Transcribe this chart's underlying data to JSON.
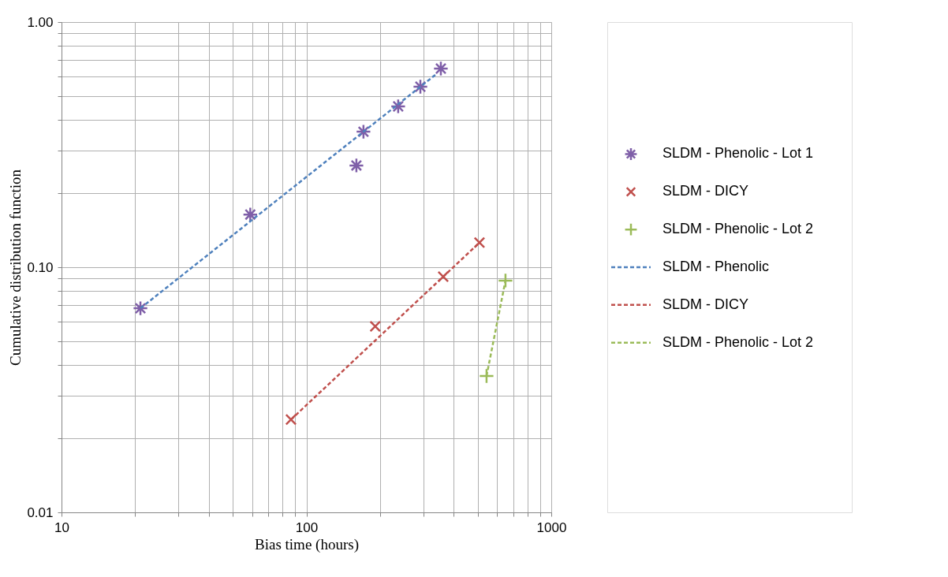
{
  "chart_data": {
    "type": "scatter",
    "xlabel": "Bias time (hours)",
    "ylabel": "Cumulative distribution function",
    "log": "xy",
    "grid": true,
    "legend": "right",
    "xlim": [
      10,
      1000
    ],
    "ylim": [
      0.01,
      1
    ],
    "xticks": [
      10,
      {
        "value": 20,
        "label": null
      },
      {
        "value": 30,
        "label": null
      },
      {
        "value": 40,
        "label": null
      },
      {
        "value": 50,
        "label": null
      },
      {
        "value": 60,
        "label": null
      },
      {
        "value": 70,
        "label": null
      },
      {
        "value": 80,
        "label": null
      },
      {
        "value": 90,
        "label": null
      },
      100,
      {
        "value": 200,
        "label": null
      },
      {
        "value": 300,
        "label": null
      },
      {
        "value": 400,
        "label": null
      },
      {
        "value": 500,
        "label": null
      },
      {
        "value": 600,
        "label": null
      },
      {
        "value": 700,
        "label": null
      },
      {
        "value": 800,
        "label": null
      },
      {
        "value": 900,
        "label": null
      },
      1000
    ],
    "yticks": [
      {
        "value": 0.01,
        "label": "0.01"
      },
      {
        "value": 0.02,
        "label": null
      },
      {
        "value": 0.03,
        "label": null
      },
      {
        "value": 0.04,
        "label": null
      },
      {
        "value": 0.05,
        "label": null
      },
      {
        "value": 0.06,
        "label": null
      },
      {
        "value": 0.07,
        "label": null
      },
      {
        "value": 0.08,
        "label": null
      },
      {
        "value": 0.09,
        "label": null
      },
      {
        "value": 0.1,
        "label": "0.10"
      },
      {
        "value": 0.2,
        "label": null
      },
      {
        "value": 0.3,
        "label": null
      },
      {
        "value": 0.4,
        "label": null
      },
      {
        "value": 0.5,
        "label": null
      },
      {
        "value": 0.6,
        "label": null
      },
      {
        "value": 0.7,
        "label": null
      },
      {
        "value": 0.8,
        "label": null
      },
      {
        "value": 0.9,
        "label": null
      },
      {
        "value": 1,
        "label": "1.00"
      }
    ],
    "series": [
      {
        "name": "SLDM - Phenolic - Lot 1",
        "type": "scatter",
        "marker": "cross",
        "color": "#7f5fa8",
        "x": [
          21,
          59,
          160,
          171,
          237,
          292,
          354
        ],
        "values": [
          0.068,
          0.164,
          0.26,
          0.357,
          0.453,
          0.545,
          0.646
        ]
      },
      {
        "name": "SLDM - DICY",
        "type": "scatter",
        "marker": "cross",
        "color": "#c0504d",
        "x": [
          86.5,
          191,
          362,
          509
        ],
        "values": [
          0.0239,
          0.0574,
          0.0915,
          0.126
        ]
      },
      {
        "name": "SLDM - Phenolic - Lot 2",
        "type": "scatter",
        "marker": "cross",
        "color": "#9bbb59",
        "x": [
          544,
          650
        ],
        "values": [
          0.036,
          0.0882
        ]
      },
      {
        "name": "SLDM - Phenolic",
        "type": "line",
        "line_style": "dashed",
        "color": "#4f81bd",
        "x": [
          21,
          336
        ],
        "values": [
          0.068,
          0.609
        ]
      },
      {
        "name": "SLDM - DICY",
        "type": "line",
        "line_style": "dashed",
        "color": "#c0504d",
        "x": [
          86.5,
          509
        ],
        "values": [
          0.0239,
          0.126
        ]
      },
      {
        "name": "SLDM - Phenolic - Lot 2",
        "type": "line",
        "line_style": "dashed",
        "color": "#9bbb59",
        "x": [
          544,
          650
        ],
        "values": [
          0.036,
          0.0882
        ]
      }
    ]
  }
}
